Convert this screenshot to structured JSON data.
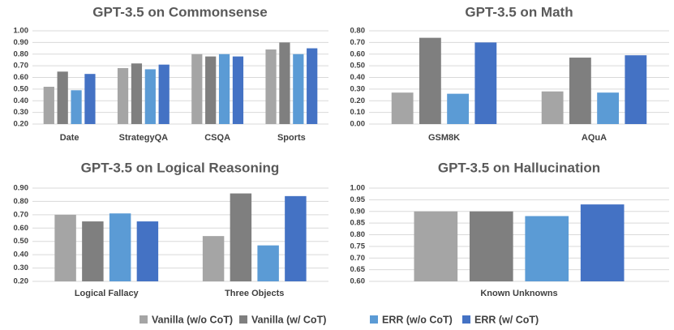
{
  "legend": [
    {
      "name": "Vanilla (w/o CoT)",
      "color": "#a5a5a5"
    },
    {
      "name": "Vanilla (w/ CoT)",
      "color": "#7f7f7f"
    },
    {
      "name": "ERR (w/o CoT)",
      "color": "#5b9bd5"
    },
    {
      "name": "ERR (w/ CoT)",
      "color": "#4472c4"
    }
  ],
  "chart_data": [
    {
      "type": "bar",
      "title": "GPT-3.5 on Commonsense",
      "categories": [
        "Date",
        "StrategyQA",
        "CSQA",
        "Sports"
      ],
      "series": [
        {
          "values": [
            0.52,
            0.68,
            0.8,
            0.84
          ]
        },
        {
          "values": [
            0.65,
            0.72,
            0.78,
            0.9
          ]
        },
        {
          "values": [
            0.49,
            0.67,
            0.8,
            0.8
          ]
        },
        {
          "values": [
            0.63,
            0.71,
            0.78,
            0.85
          ]
        }
      ],
      "ylim": [
        0.2,
        1.0
      ],
      "yticks": [
        {
          "value": 0.2,
          "label": "0.20"
        },
        {
          "value": 0.3,
          "label": "0.30"
        },
        {
          "value": 0.4,
          "label": "0.40"
        },
        {
          "value": 0.5,
          "label": "0.50"
        },
        {
          "value": 0.6,
          "label": "0.60"
        },
        {
          "value": 0.7,
          "label": "0.70"
        },
        {
          "value": 0.8,
          "label": "0.80"
        },
        {
          "value": 0.9,
          "label": "0.90"
        },
        {
          "value": 1.0,
          "label": "1.00"
        }
      ],
      "grid": true
    },
    {
      "type": "bar",
      "title": "GPT-3.5 on Math",
      "categories": [
        "GSM8K",
        "AQuA"
      ],
      "series": [
        {
          "values": [
            0.27,
            0.28
          ]
        },
        {
          "values": [
            0.74,
            0.57
          ]
        },
        {
          "values": [
            0.26,
            0.27
          ]
        },
        {
          "values": [
            0.7,
            0.59
          ]
        }
      ],
      "ylim": [
        0,
        0.8
      ],
      "yticks": [
        {
          "value": 0,
          "label": "0.00"
        },
        {
          "value": 0.1,
          "label": "0.10"
        },
        {
          "value": 0.2,
          "label": "0.20"
        },
        {
          "value": 0.3,
          "label": "0.30"
        },
        {
          "value": 0.4,
          "label": "0.40"
        },
        {
          "value": 0.5,
          "label": "0.50"
        },
        {
          "value": 0.6,
          "label": "0.60"
        },
        {
          "value": 0.7,
          "label": "0.70"
        },
        {
          "value": 0.8,
          "label": "0.80"
        }
      ],
      "grid": true
    },
    {
      "type": "bar",
      "title": "GPT-3.5 on Logical Reasoning",
      "categories": [
        "Logical Fallacy",
        "Three Objects"
      ],
      "series": [
        {
          "values": [
            0.7,
            0.54
          ]
        },
        {
          "values": [
            0.65,
            0.86
          ]
        },
        {
          "values": [
            0.71,
            0.47
          ]
        },
        {
          "values": [
            0.65,
            0.84
          ]
        }
      ],
      "ylim": [
        0.2,
        0.9
      ],
      "yticks": [
        {
          "value": 0.2,
          "label": "0.20"
        },
        {
          "value": 0.3,
          "label": "0.30"
        },
        {
          "value": 0.4,
          "label": "0.40"
        },
        {
          "value": 0.5,
          "label": "0.50"
        },
        {
          "value": 0.6,
          "label": "0.60"
        },
        {
          "value": 0.7,
          "label": "0.70"
        },
        {
          "value": 0.8,
          "label": "0.80"
        },
        {
          "value": 0.9,
          "label": "0.90"
        }
      ],
      "grid": true
    },
    {
      "type": "bar",
      "title": "GPT-3.5 on Hallucination",
      "categories": [
        "Known Unknowns"
      ],
      "series": [
        {
          "values": [
            0.9
          ]
        },
        {
          "values": [
            0.9
          ]
        },
        {
          "values": [
            0.88
          ]
        },
        {
          "values": [
            0.93
          ]
        }
      ],
      "ylim": [
        0.6,
        1.0
      ],
      "yticks": [
        {
          "value": 0.6,
          "label": "0.60"
        },
        {
          "value": 0.65,
          "label": "0.65"
        },
        {
          "value": 0.7,
          "label": "0.70"
        },
        {
          "value": 0.75,
          "label": "0.75"
        },
        {
          "value": 0.8,
          "label": "0.80"
        },
        {
          "value": 0.85,
          "label": "0.85"
        },
        {
          "value": 0.9,
          "label": "0.90"
        },
        {
          "value": 0.95,
          "label": "0.95"
        },
        {
          "value": 1.0,
          "label": "1.00"
        }
      ],
      "grid": true
    }
  ]
}
